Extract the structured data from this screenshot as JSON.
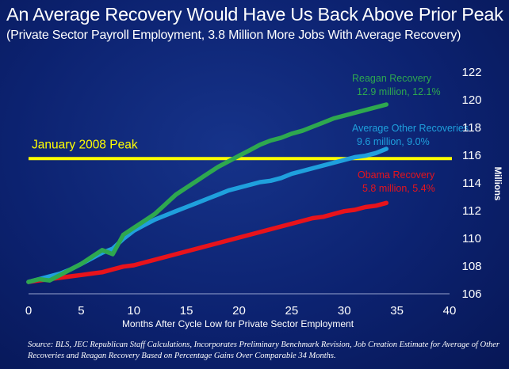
{
  "header": {
    "title": "An Average Recovery Would Have Us Back Above Prior Peak",
    "subtitle": "(Private Sector Payroll Employment, 3.8 Million More Jobs With Average Recovery)"
  },
  "footer": {
    "source": "Source:  BLS, JEC Republican Staff Calculations, Incorporates Preliminary Benchmark Revision, Job Creation Estimate for Average of Other Recoveries and Reagan Recovery Based on Percentage Gains Over Comparable 34 Months."
  },
  "chart_data": {
    "type": "line",
    "title": "An Average Recovery Would Have Us Back Above Prior Peak",
    "subtitle": "(Private Sector Payroll Employment, 3.8 Million More Jobs With Average Recovery)",
    "xlabel": "Months After Cycle Low for Private Sector Employment",
    "ylabel": "Millions",
    "xlim": [
      0,
      40
    ],
    "ylim": [
      106,
      122
    ],
    "xticks": [
      "0",
      "5",
      "10",
      "15",
      "20",
      "25",
      "30",
      "35",
      "40"
    ],
    "yticks": [
      "106",
      "108",
      "110",
      "112",
      "114",
      "116",
      "118",
      "120",
      "122"
    ],
    "x": [
      0,
      1,
      2,
      3,
      4,
      5,
      6,
      7,
      8,
      9,
      10,
      11,
      12,
      13,
      14,
      15,
      16,
      17,
      18,
      19,
      20,
      21,
      22,
      23,
      24,
      25,
      26,
      27,
      28,
      29,
      30,
      31,
      32,
      33,
      34
    ],
    "series": [
      {
        "name": "Reagan Recovery",
        "label_line1": "Reagan Recovery",
        "label_line2": "12.9 million, 12.1%",
        "color": "#2ea84f",
        "values": [
          106.8,
          107.0,
          106.9,
          107.3,
          107.7,
          108.1,
          108.6,
          109.1,
          108.8,
          110.2,
          110.7,
          111.2,
          111.7,
          112.4,
          113.1,
          113.6,
          114.1,
          114.6,
          115.1,
          115.5,
          115.9,
          116.3,
          116.7,
          117.0,
          117.2,
          117.5,
          117.7,
          118.0,
          118.3,
          118.6,
          118.8,
          119.0,
          119.2,
          119.4,
          119.6
        ]
      },
      {
        "name": "Average Other Recoveries",
        "label_line1": "Average Other Recoveries",
        "label_line2": "9.6 million, 9.0%",
        "color": "#1fa0dd",
        "values": [
          106.8,
          107.0,
          107.2,
          107.4,
          107.7,
          108.1,
          108.5,
          108.9,
          109.2,
          109.9,
          110.5,
          110.9,
          111.3,
          111.6,
          111.9,
          112.2,
          112.5,
          112.8,
          113.1,
          113.4,
          113.6,
          113.8,
          114.0,
          114.1,
          114.3,
          114.6,
          114.8,
          115.0,
          115.2,
          115.4,
          115.6,
          115.8,
          115.9,
          116.1,
          116.4
        ]
      },
      {
        "name": "Obama Recovery",
        "label_line1": "Obama Recovery",
        "label_line2": "5.8 million, 5.4%",
        "color": "#e8131b",
        "values": [
          106.8,
          106.9,
          107.0,
          107.1,
          107.2,
          107.3,
          107.4,
          107.5,
          107.7,
          107.9,
          108.0,
          108.2,
          108.4,
          108.6,
          108.8,
          109.0,
          109.2,
          109.4,
          109.6,
          109.8,
          110.0,
          110.2,
          110.4,
          110.6,
          110.8,
          111.0,
          111.2,
          111.4,
          111.5,
          111.7,
          111.9,
          112.0,
          112.2,
          112.3,
          112.5
        ]
      }
    ],
    "reference_line": {
      "label": "January 2008 Peak",
      "value": 115.7,
      "color": "#ffff00"
    }
  }
}
